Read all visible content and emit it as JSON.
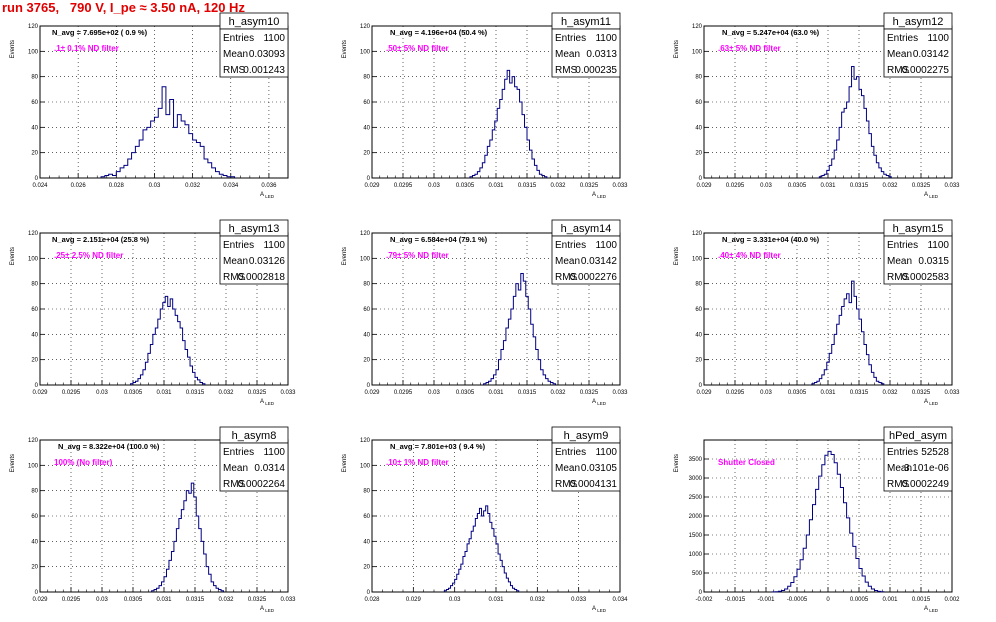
{
  "run_title": "run 3765,   790 V, I_pe ≈ 3.50 nA, 120 Hz",
  "stat_labels": {
    "entries": "Entries",
    "mean": "Mean",
    "rms": "RMS"
  },
  "y_axis_label": "Events",
  "colors": {
    "histogram": "#000080",
    "filter_label": "#ff00ff",
    "run_title": "#e00000",
    "grid": "#000000"
  },
  "chart_data": [
    {
      "type": "histogram",
      "title": "h_asym10",
      "n_avg": "N_avg = 7.695e+02 ( 0.9 %)",
      "filter": ".1± 0.1% ND filter",
      "stats": {
        "entries": "1100",
        "mean": "0.03093",
        "rms": "0.001243"
      },
      "xlim": [
        0.024,
        0.037
      ],
      "ylim": [
        0,
        120
      ],
      "xlabel": "A_LED",
      "x_ticks": [
        0.024,
        0.026,
        0.028,
        0.03,
        0.032,
        0.034,
        0.036
      ],
      "x_tick_labels": [
        "0.024",
        "0.026",
        "0.028",
        "0.03",
        "0.032",
        "0.034",
        "0.036"
      ],
      "y_ticks": [
        0,
        20,
        40,
        60,
        80,
        100,
        120
      ],
      "y_tick_labels": [
        "0",
        "20",
        "40",
        "60",
        "80",
        "100",
        "120"
      ],
      "bin_start": 0.0272,
      "bin_width": 0.0002,
      "counts": [
        1,
        2,
        3,
        2,
        5,
        8,
        10,
        15,
        20,
        25,
        30,
        38,
        40,
        45,
        48,
        55,
        72,
        50,
        62,
        40,
        50,
        45,
        42,
        35,
        30,
        28,
        25,
        15,
        12,
        8,
        5,
        3,
        2,
        1,
        1
      ]
    },
    {
      "type": "histogram",
      "title": "h_asym11",
      "n_avg": "N_avg = 4.196e+04 (50.4 %)",
      "filter": ".50± 5% ND filter",
      "stats": {
        "entries": "1100",
        "mean": "0.0313",
        "rms": "0.000235"
      },
      "xlim": [
        0.029,
        0.033
      ],
      "ylim": [
        0,
        120
      ],
      "xlabel": "A_LED",
      "x_ticks": [
        0.029,
        0.0295,
        0.03,
        0.0305,
        0.031,
        0.0315,
        0.032,
        0.0325,
        0.033
      ],
      "x_tick_labels": [
        "0.029",
        "0.0295",
        "0.03",
        "0.0305",
        "0.031",
        "0.0315",
        "0.032",
        "0.0325",
        "0.033"
      ],
      "y_ticks": [
        0,
        20,
        40,
        60,
        80,
        100,
        120
      ],
      "y_tick_labels": [
        "0",
        "20",
        "40",
        "60",
        "80",
        "100",
        "120"
      ],
      "bin_start": 0.03058,
      "bin_width": 4e-05,
      "counts": [
        1,
        2,
        3,
        5,
        8,
        12,
        18,
        25,
        30,
        38,
        45,
        55,
        62,
        70,
        78,
        85,
        75,
        80,
        72,
        70,
        60,
        50,
        40,
        30,
        22,
        15,
        10,
        6,
        3,
        2,
        1
      ]
    },
    {
      "type": "histogram",
      "title": "h_asym12",
      "n_avg": "N_avg = 5.247e+04 (63.0 %)",
      "filter": ".63± 5% ND filter",
      "stats": {
        "entries": "1100",
        "mean": "0.03142",
        "rms": "0.0002275"
      },
      "xlim": [
        0.029,
        0.033
      ],
      "ylim": [
        0,
        120
      ],
      "xlabel": "A_LED",
      "x_ticks": [
        0.029,
        0.0295,
        0.03,
        0.0305,
        0.031,
        0.0315,
        0.032,
        0.0325,
        0.033
      ],
      "x_tick_labels": [
        "0.029",
        "0.0295",
        "0.03",
        "0.0305",
        "0.031",
        "0.0315",
        "0.032",
        "0.0325",
        "0.033"
      ],
      "y_ticks": [
        0,
        20,
        40,
        60,
        80,
        100,
        120
      ],
      "y_tick_labels": [
        "0",
        "20",
        "40",
        "60",
        "80",
        "100",
        "120"
      ],
      "bin_start": 0.03086,
      "bin_width": 4e-05,
      "counts": [
        1,
        2,
        3,
        6,
        10,
        15,
        22,
        30,
        40,
        52,
        55,
        60,
        72,
        88,
        78,
        80,
        70,
        65,
        55,
        45,
        35,
        25,
        18,
        12,
        8,
        5,
        3,
        2,
        1
      ]
    },
    {
      "type": "histogram",
      "title": "h_asym13",
      "n_avg": "N_avg = 2.151e+04 (25.8 %)",
      "filter": ".25± 2.5% ND filter",
      "stats": {
        "entries": "1100",
        "mean": "0.03126",
        "rms": "0.0002818"
      },
      "xlim": [
        0.029,
        0.033
      ],
      "ylim": [
        0,
        120
      ],
      "xlabel": "A_LED",
      "x_ticks": [
        0.029,
        0.0295,
        0.03,
        0.0305,
        0.031,
        0.0315,
        0.032,
        0.0325,
        0.033
      ],
      "x_tick_labels": [
        "0.029",
        "0.0295",
        "0.03",
        "0.0305",
        "0.031",
        "0.0315",
        "0.032",
        "0.0325",
        "0.033"
      ],
      "y_ticks": [
        0,
        20,
        40,
        60,
        80,
        100,
        120
      ],
      "y_tick_labels": [
        "0",
        "20",
        "40",
        "60",
        "80",
        "100",
        "120"
      ],
      "bin_start": 0.03046,
      "bin_width": 4e-05,
      "counts": [
        1,
        2,
        3,
        5,
        8,
        12,
        18,
        25,
        32,
        40,
        45,
        52,
        60,
        65,
        70,
        62,
        68,
        60,
        55,
        50,
        45,
        35,
        28,
        22,
        15,
        10,
        6,
        4,
        2,
        1
      ]
    },
    {
      "type": "histogram",
      "title": "h_asym14",
      "n_avg": "N_avg = 6.584e+04 (79.1 %)",
      "filter": ".79± 5% ND filter",
      "stats": {
        "entries": "1100",
        "mean": "0.03142",
        "rms": "0.0002276"
      },
      "xlim": [
        0.029,
        0.033
      ],
      "ylim": [
        0,
        120
      ],
      "xlabel": "A_LED",
      "x_ticks": [
        0.029,
        0.0295,
        0.03,
        0.0305,
        0.031,
        0.0315,
        0.032,
        0.0325,
        0.033
      ],
      "x_tick_labels": [
        "0.029",
        "0.0295",
        "0.03",
        "0.0305",
        "0.031",
        "0.0315",
        "0.032",
        "0.0325",
        "0.033"
      ],
      "y_ticks": [
        0,
        20,
        40,
        60,
        80,
        100,
        120
      ],
      "y_tick_labels": [
        "0",
        "20",
        "40",
        "60",
        "80",
        "100",
        "120"
      ],
      "bin_start": 0.0308,
      "bin_width": 4e-05,
      "counts": [
        1,
        2,
        3,
        5,
        8,
        12,
        20,
        28,
        35,
        45,
        52,
        60,
        70,
        80,
        75,
        88,
        82,
        70,
        60,
        48,
        38,
        28,
        20,
        12,
        8,
        5,
        3,
        2,
        1
      ]
    },
    {
      "type": "histogram",
      "title": "h_asym15",
      "n_avg": "N_avg = 3.331e+04 (40.0 %)",
      "filter": ".40± 4% ND filter",
      "stats": {
        "entries": "1100",
        "mean": "0.0315",
        "rms": "0.0002583"
      },
      "xlim": [
        0.029,
        0.033
      ],
      "ylim": [
        0,
        120
      ],
      "xlabel": "A_LED",
      "x_ticks": [
        0.029,
        0.0295,
        0.03,
        0.0305,
        0.031,
        0.0315,
        0.032,
        0.0325,
        0.033
      ],
      "x_tick_labels": [
        "0.029",
        "0.0295",
        "0.03",
        "0.0305",
        "0.031",
        "0.0315",
        "0.032",
        "0.0325",
        "0.033"
      ],
      "y_ticks": [
        0,
        20,
        40,
        60,
        80,
        100,
        120
      ],
      "y_tick_labels": [
        "0",
        "20",
        "40",
        "60",
        "80",
        "100",
        "120"
      ],
      "bin_start": 0.03074,
      "bin_width": 4e-05,
      "counts": [
        1,
        2,
        3,
        5,
        8,
        12,
        18,
        25,
        32,
        40,
        48,
        55,
        62,
        68,
        72,
        65,
        82,
        70,
        60,
        52,
        42,
        32,
        24,
        16,
        10,
        6,
        3,
        2,
        1
      ]
    },
    {
      "type": "histogram",
      "title": "h_asym8",
      "n_avg": "N_avg = 8.322e+04 (100.0 %)",
      "filter": "100% (No filter)",
      "stats": {
        "entries": "1100",
        "mean": "0.0314",
        "rms": "0.0002264"
      },
      "xlim": [
        0.029,
        0.033
      ],
      "ylim": [
        0,
        120
      ],
      "xlabel": "A_LED",
      "x_ticks": [
        0.029,
        0.0295,
        0.03,
        0.0305,
        0.031,
        0.0315,
        0.032,
        0.0325,
        0.033
      ],
      "x_tick_labels": [
        "0.029",
        "0.0295",
        "0.03",
        "0.0305",
        "0.031",
        "0.0315",
        "0.032",
        "0.0325",
        "0.033"
      ],
      "y_ticks": [
        0,
        20,
        40,
        60,
        80,
        100,
        120
      ],
      "y_tick_labels": [
        "0",
        "20",
        "40",
        "60",
        "80",
        "100",
        "120"
      ],
      "bin_start": 0.0308,
      "bin_width": 4e-05,
      "counts": [
        1,
        2,
        3,
        5,
        8,
        12,
        18,
        25,
        32,
        40,
        50,
        58,
        65,
        72,
        80,
        78,
        86,
        75,
        60,
        50,
        40,
        30,
        20,
        14,
        8,
        5,
        3,
        2,
        1
      ]
    },
    {
      "type": "histogram",
      "title": "h_asym9",
      "n_avg": "N_avg = 7.801e+03 ( 9.4 %)",
      "filter": ".10± 1% ND filter",
      "stats": {
        "entries": "1100",
        "mean": "0.03105",
        "rms": "0.0004131"
      },
      "xlim": [
        0.028,
        0.034
      ],
      "ylim": [
        0,
        120
      ],
      "xlabel": "A_LED",
      "x_ticks": [
        0.028,
        0.029,
        0.03,
        0.031,
        0.032,
        0.033,
        0.034
      ],
      "x_tick_labels": [
        "0.028",
        "0.029",
        "0.03",
        "0.031",
        "0.032",
        "0.033",
        "0.034"
      ],
      "y_ticks": [
        0,
        20,
        40,
        60,
        80,
        100,
        120
      ],
      "y_tick_labels": [
        "0",
        "20",
        "40",
        "60",
        "80",
        "100",
        "120"
      ],
      "bin_start": 0.02975,
      "bin_width": 5e-05,
      "counts": [
        1,
        2,
        3,
        5,
        7,
        10,
        14,
        18,
        22,
        28,
        32,
        38,
        42,
        48,
        52,
        58,
        62,
        66,
        60,
        64,
        68,
        62,
        55,
        50,
        44,
        38,
        30,
        25,
        20,
        15,
        11,
        8,
        5,
        3,
        2,
        1
      ]
    },
    {
      "type": "histogram",
      "title": "hPed_asym",
      "n_avg": "",
      "filter": "Shutter Closed",
      "stats": {
        "entries": "52528",
        "mean": "3.101e-06",
        "rms": "0.0002249"
      },
      "xlim": [
        -0.002,
        0.002
      ],
      "ylim": [
        0,
        4000
      ],
      "xlabel": "A_LED",
      "x_ticks": [
        -0.002,
        -0.0015,
        -0.001,
        -0.0005,
        0,
        0.0005,
        0.001,
        0.0015,
        0.002
      ],
      "x_tick_labels": [
        "-0.002",
        "-0.0015",
        "-0.001",
        "-0.0005",
        "0",
        "0.0005",
        "0.001",
        "0.0015",
        "0.002"
      ],
      "y_ticks": [
        0,
        500,
        1000,
        1500,
        2000,
        2500,
        3000,
        3500
      ],
      "y_tick_labels": [
        "0",
        "500",
        "1000",
        "1500",
        "2000",
        "2500",
        "3000",
        "3500"
      ],
      "bin_start": -0.0009,
      "bin_width": 5e-05,
      "counts": [
        3,
        8,
        20,
        40,
        80,
        150,
        250,
        400,
        600,
        850,
        1150,
        1500,
        1900,
        2300,
        2700,
        3050,
        3350,
        3600,
        3700,
        3620,
        3400,
        3100,
        2750,
        2350,
        1950,
        1550,
        1200,
        880,
        620,
        420,
        260,
        150,
        80,
        40,
        18,
        8
      ]
    }
  ]
}
